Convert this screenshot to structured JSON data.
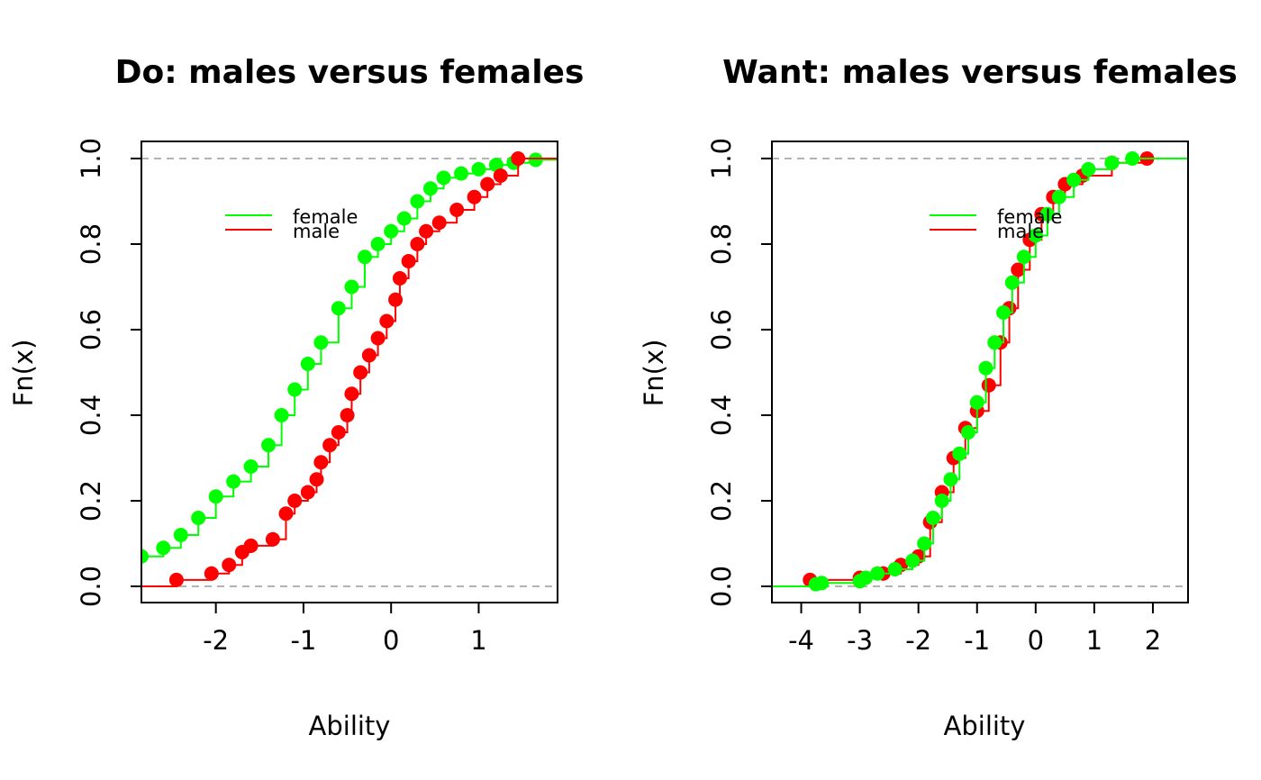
{
  "chart_data": [
    {
      "type": "step",
      "subtype": "empirical-cdf",
      "title": "Do: males versus females",
      "xlabel": "Ability",
      "ylabel": "Fn(x)",
      "xlim": [
        -2.85,
        1.9
      ],
      "ylim": [
        0,
        1
      ],
      "xticks": [
        "-2",
        "-1",
        "0",
        "1"
      ],
      "yticks": [
        "0.0",
        "0.2",
        "0.4",
        "0.6",
        "0.8",
        "1.0"
      ],
      "reference_lines_y": [
        0,
        1
      ],
      "legend_position": "top-center",
      "series": [
        {
          "name": "female",
          "color": "#00ff00",
          "points": [
            [
              -2.85,
              0.07
            ],
            [
              -2.6,
              0.09
            ],
            [
              -2.4,
              0.12
            ],
            [
              -2.2,
              0.16
            ],
            [
              -2.0,
              0.21
            ],
            [
              -1.8,
              0.245
            ],
            [
              -1.6,
              0.28
            ],
            [
              -1.4,
              0.33
            ],
            [
              -1.25,
              0.4
            ],
            [
              -1.1,
              0.46
            ],
            [
              -0.95,
              0.52
            ],
            [
              -0.8,
              0.57
            ],
            [
              -0.6,
              0.65
            ],
            [
              -0.45,
              0.7
            ],
            [
              -0.3,
              0.77
            ],
            [
              -0.15,
              0.8
            ],
            [
              0.0,
              0.83
            ],
            [
              0.15,
              0.86
            ],
            [
              0.3,
              0.9
            ],
            [
              0.45,
              0.93
            ],
            [
              0.6,
              0.955
            ],
            [
              0.8,
              0.965
            ],
            [
              1.0,
              0.975
            ],
            [
              1.2,
              0.985
            ],
            [
              1.4,
              0.99
            ],
            [
              1.65,
              0.997
            ]
          ]
        },
        {
          "name": "male",
          "color": "#ff0000",
          "points": [
            [
              -2.45,
              0.015
            ],
            [
              -2.05,
              0.03
            ],
            [
              -1.85,
              0.05
            ],
            [
              -1.7,
              0.08
            ],
            [
              -1.6,
              0.095
            ],
            [
              -1.35,
              0.11
            ],
            [
              -1.2,
              0.17
            ],
            [
              -1.1,
              0.2
            ],
            [
              -0.95,
              0.22
            ],
            [
              -0.85,
              0.25
            ],
            [
              -0.8,
              0.29
            ],
            [
              -0.7,
              0.33
            ],
            [
              -0.6,
              0.36
            ],
            [
              -0.5,
              0.4
            ],
            [
              -0.45,
              0.45
            ],
            [
              -0.35,
              0.5
            ],
            [
              -0.25,
              0.54
            ],
            [
              -0.15,
              0.58
            ],
            [
              -0.05,
              0.62
            ],
            [
              0.05,
              0.67
            ],
            [
              0.1,
              0.72
            ],
            [
              0.2,
              0.76
            ],
            [
              0.3,
              0.8
            ],
            [
              0.4,
              0.83
            ],
            [
              0.55,
              0.85
            ],
            [
              0.75,
              0.88
            ],
            [
              0.95,
              0.91
            ],
            [
              1.1,
              0.94
            ],
            [
              1.25,
              0.96
            ],
            [
              1.45,
              1.0
            ]
          ]
        }
      ]
    },
    {
      "type": "step",
      "subtype": "empirical-cdf",
      "title": "Want: males versus females",
      "xlabel": "Ability",
      "ylabel": "Fn(x)",
      "xlim": [
        -4.5,
        2.6
      ],
      "ylim": [
        0,
        1
      ],
      "xticks": [
        "-4",
        "-3",
        "-2",
        "-1",
        "0",
        "1",
        "2"
      ],
      "yticks": [
        "0.0",
        "0.2",
        "0.4",
        "0.6",
        "0.8",
        "1.0"
      ],
      "reference_lines_y": [
        0,
        1
      ],
      "legend_position": "top-center",
      "series": [
        {
          "name": "male",
          "color": "#ff0000",
          "points": [
            [
              -3.85,
              0.015
            ],
            [
              -3.0,
              0.02
            ],
            [
              -2.6,
              0.03
            ],
            [
              -2.3,
              0.05
            ],
            [
              -2.0,
              0.07
            ],
            [
              -1.8,
              0.15
            ],
            [
              -1.6,
              0.22
            ],
            [
              -1.4,
              0.3
            ],
            [
              -1.2,
              0.37
            ],
            [
              -1.0,
              0.41
            ],
            [
              -0.8,
              0.47
            ],
            [
              -0.6,
              0.57
            ],
            [
              -0.45,
              0.65
            ],
            [
              -0.3,
              0.74
            ],
            [
              -0.1,
              0.81
            ],
            [
              0.1,
              0.87
            ],
            [
              0.3,
              0.91
            ],
            [
              0.5,
              0.94
            ],
            [
              0.8,
              0.96
            ],
            [
              1.3,
              0.99
            ],
            [
              1.9,
              1.0
            ]
          ]
        },
        {
          "name": "female",
          "color": "#00ff00",
          "points": [
            [
              -3.75,
              0.005
            ],
            [
              -3.65,
              0.008
            ],
            [
              -3.0,
              0.012
            ],
            [
              -2.9,
              0.02
            ],
            [
              -2.7,
              0.03
            ],
            [
              -2.4,
              0.04
            ],
            [
              -2.1,
              0.06
            ],
            [
              -1.9,
              0.1
            ],
            [
              -1.75,
              0.16
            ],
            [
              -1.6,
              0.2
            ],
            [
              -1.45,
              0.25
            ],
            [
              -1.3,
              0.31
            ],
            [
              -1.15,
              0.36
            ],
            [
              -1.0,
              0.43
            ],
            [
              -0.85,
              0.51
            ],
            [
              -0.7,
              0.57
            ],
            [
              -0.55,
              0.64
            ],
            [
              -0.4,
              0.71
            ],
            [
              -0.2,
              0.77
            ],
            [
              0.0,
              0.82
            ],
            [
              0.2,
              0.87
            ],
            [
              0.4,
              0.91
            ],
            [
              0.65,
              0.95
            ],
            [
              0.9,
              0.975
            ],
            [
              1.3,
              0.99
            ],
            [
              1.65,
              1.0
            ]
          ]
        }
      ]
    }
  ]
}
